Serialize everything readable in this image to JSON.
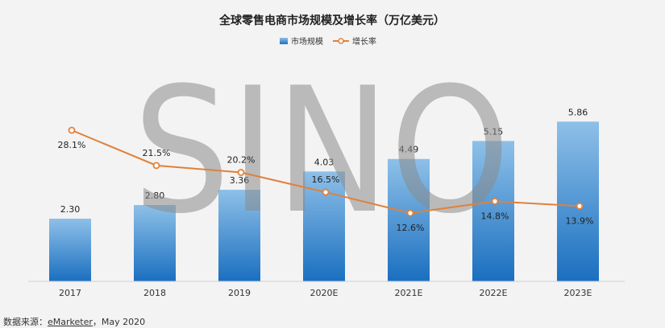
{
  "chart_data": {
    "type": "bar",
    "title": "全球零售电商市场规模及增长率（万亿美元）",
    "categories": [
      "2017",
      "2018",
      "2019",
      "2020E",
      "2021E",
      "2022E",
      "2023E"
    ],
    "series": [
      {
        "name": "市场规模",
        "type": "bar",
        "values": [
          2.3,
          2.8,
          3.36,
          4.03,
          4.49,
          5.15,
          5.86
        ],
        "labels": [
          "2.30",
          "2.80",
          "3.36",
          "4.03",
          "4.49",
          "5.15",
          "5.86"
        ]
      },
      {
        "name": "增长率",
        "type": "line",
        "values": [
          28.1,
          21.5,
          20.2,
          16.5,
          12.6,
          14.8,
          13.9
        ],
        "labels": [
          "28.1%",
          "21.5%",
          "20.2%",
          "16.5%",
          "12.6%",
          "14.8%",
          "13.9%"
        ]
      }
    ],
    "legend_position": "top",
    "grid": false,
    "colors": {
      "bar_top": "#8ec0e8",
      "bar_bottom": "#1a6fc0",
      "line": "#e0813a"
    }
  },
  "watermark": "SINO",
  "source": {
    "prefix": "数据来源：",
    "name": "eMarketer",
    "suffix": "，May 2020"
  }
}
